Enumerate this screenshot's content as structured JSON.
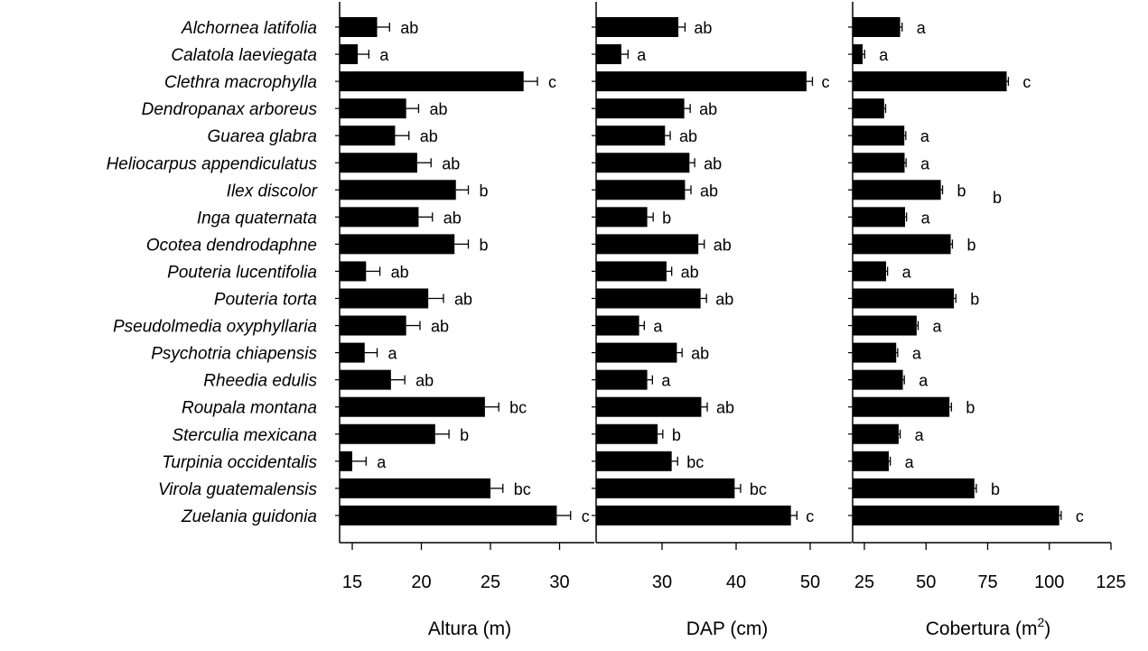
{
  "chart_data": {
    "type": "bar",
    "orientation": "horizontal",
    "categories": [
      "Alchornea latifolia",
      "Calatola laeviegata",
      "Clethra macrophylla",
      "Dendropanax arboreus",
      "Guarea glabra",
      "Heliocarpus appendiculatus",
      "Ilex discolor",
      "Inga quaternata",
      "Ocotea dendrodaphne",
      "Pouteria lucentifolia",
      "Pouteria torta",
      "Pseudolmedia oxyphyllaria",
      "Psychotria chiapensis",
      "Rheedia edulis",
      "Roupala montana",
      "Sterculia mexicana",
      "Turpinia occidentalis",
      "Virola guatemalensis",
      "Zuelania guidonia"
    ],
    "panels": [
      {
        "id": "altura",
        "xlabel": "Altura (m)",
        "xlim": [
          14,
          32.5
        ],
        "ticks": [
          15,
          20,
          25,
          30
        ],
        "tick_labels": [
          "15",
          "20",
          "25",
          "30"
        ],
        "values": [
          16.8,
          15.4,
          27.4,
          18.9,
          18.1,
          19.7,
          22.5,
          19.8,
          22.4,
          16.0,
          20.5,
          18.9,
          15.9,
          17.8,
          24.6,
          21.0,
          15.0,
          25.0,
          29.8
        ],
        "errors": [
          0.9,
          0.8,
          1.0,
          0.9,
          1.0,
          1.0,
          0.9,
          1.0,
          1.0,
          1.0,
          1.1,
          1.0,
          0.9,
          1.0,
          1.0,
          1.0,
          1.0,
          0.9,
          1.0
        ],
        "letters": [
          "ab",
          "a",
          "c",
          "ab",
          "ab",
          "ab",
          "b",
          "ab",
          "b",
          "ab",
          "ab",
          "ab",
          "a",
          "ab",
          "bc",
          "b",
          "a",
          "bc",
          "c"
        ]
      },
      {
        "id": "dap",
        "xlabel": "DAP (cm)",
        "xlim": [
          21,
          54
        ],
        "ticks": [
          30,
          40,
          50
        ],
        "tick_labels": [
          "30",
          "40",
          "50"
        ],
        "values": [
          32.2,
          24.5,
          49.5,
          33.0,
          30.4,
          33.7,
          33.1,
          28.0,
          34.9,
          30.6,
          35.2,
          26.9,
          32.0,
          28.0,
          35.3,
          29.4,
          31.3,
          39.8,
          47.4
        ],
        "errors": [
          0.9,
          0.9,
          0.8,
          0.8,
          0.7,
          0.7,
          0.8,
          0.8,
          0.8,
          0.7,
          0.8,
          0.7,
          0.7,
          0.7,
          0.8,
          0.7,
          0.8,
          0.8,
          0.8
        ],
        "letters": [
          "ab",
          "a",
          "c",
          "ab",
          "ab",
          "ab",
          "ab",
          "b",
          "ab",
          "ab",
          "ab",
          "a",
          "ab",
          "a",
          "ab",
          "b",
          "bc",
          "bc",
          "c"
        ]
      },
      {
        "id": "cobertura",
        "xlabel": "Cobertura (m",
        "xlabel_sup": "2",
        "xlabel_end": ")",
        "xlim": [
          20,
          125
        ],
        "ticks": [
          25,
          50,
          75,
          100,
          125
        ],
        "tick_labels": [
          "25",
          "50",
          "75",
          "100",
          "125"
        ],
        "values": [
          39.5,
          24.3,
          82.7,
          33.0,
          41.2,
          41.3,
          56.0,
          41.5,
          60.0,
          33.8,
          61.3,
          46.2,
          37.9,
          40.6,
          59.5,
          38.9,
          34.9,
          69.6,
          104.0
        ],
        "errors": [
          0.8,
          0.8,
          0.7,
          0.6,
          0.6,
          0.6,
          0.7,
          0.6,
          0.7,
          0.6,
          0.8,
          0.6,
          0.6,
          0.6,
          0.8,
          0.6,
          0.6,
          0.8,
          0.8
        ],
        "letters": [
          "a",
          "a",
          "c",
          "",
          "a",
          "a",
          "b",
          "a",
          "b",
          "a",
          "b",
          "a",
          "a",
          "a",
          "b",
          "a",
          "a",
          "b",
          "c"
        ],
        "extra_annotation": "b"
      }
    ]
  }
}
